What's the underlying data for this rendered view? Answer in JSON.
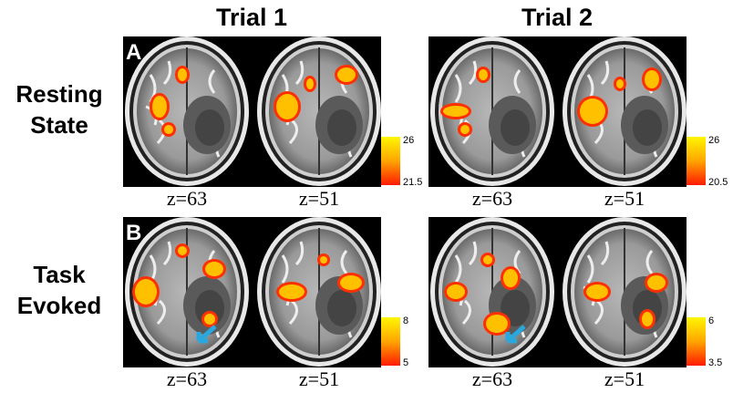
{
  "columns": [
    {
      "title": "Trial 1"
    },
    {
      "title": "Trial 2"
    }
  ],
  "rows": [
    {
      "letter": "A",
      "label": [
        "Resting",
        "State"
      ],
      "panels": [
        {
          "slices": [
            "z=63",
            "z=51"
          ],
          "colorbar": {
            "max": "26",
            "min": "21.5"
          }
        },
        {
          "slices": [
            "z=63",
            "z=51"
          ],
          "colorbar": {
            "max": "26",
            "min": "20.5"
          }
        }
      ]
    },
    {
      "letter": "B",
      "label": [
        "Task",
        "Evoked"
      ],
      "panels": [
        {
          "slices": [
            "z=63",
            "z=51"
          ],
          "colorbar": {
            "max": "8",
            "min": "5"
          }
        },
        {
          "slices": [
            "z=63",
            "z=51"
          ],
          "colorbar": {
            "max": "6",
            "min": "3.5"
          }
        }
      ]
    }
  ]
}
